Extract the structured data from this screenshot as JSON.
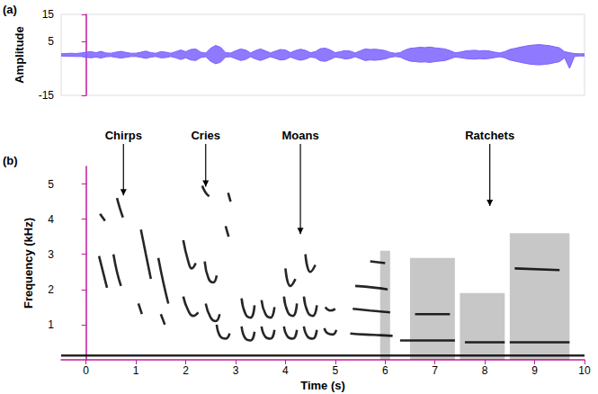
{
  "chart_data": [
    {
      "type": "line",
      "title": "(a)",
      "ylabel": "Amplitude",
      "color": "#7b61ff",
      "tick_labels": "y",
      "grid": false,
      "xlim": [
        -0.5,
        10
      ],
      "ylim": [
        -15,
        15
      ],
      "yticks": [
        -15,
        5,
        15
      ],
      "x": [
        -0.5,
        -0.4,
        -0.3,
        -0.2,
        -0.1,
        0.0,
        0.1,
        0.2,
        0.3,
        0.4,
        0.5,
        0.6,
        0.7,
        0.8,
        0.9,
        1.0,
        1.1,
        1.2,
        1.3,
        1.4,
        1.5,
        1.6,
        1.7,
        1.8,
        1.9,
        2.0,
        2.1,
        2.2,
        2.3,
        2.4,
        2.5,
        2.6,
        2.7,
        2.8,
        2.9,
        3.0,
        3.1,
        3.2,
        3.3,
        3.4,
        3.5,
        3.6,
        3.7,
        3.8,
        3.9,
        4.0,
        4.1,
        4.2,
        4.3,
        4.4,
        4.5,
        4.6,
        4.7,
        4.8,
        4.9,
        5.0,
        5.1,
        5.2,
        5.3,
        5.4,
        5.5,
        5.6,
        5.7,
        5.8,
        5.9,
        6.0,
        6.1,
        6.2,
        6.3,
        6.4,
        6.5,
        6.6,
        6.7,
        6.8,
        6.9,
        7.0,
        7.1,
        7.2,
        7.3,
        7.4,
        7.5,
        7.6,
        7.7,
        7.8,
        7.9,
        8.0,
        8.1,
        8.2,
        8.3,
        8.4,
        8.5,
        8.6,
        8.7,
        8.8,
        8.9,
        9.0,
        9.1,
        9.2,
        9.3,
        9.4,
        9.5,
        9.6,
        9.7,
        9.8,
        9.9,
        10.0
      ],
      "series": [
        {
          "values": [
            0.4,
            0.5,
            0.6,
            0.5,
            0.7,
            1.0,
            1.2,
            0.8,
            1.3,
            0.7,
            0.6,
            1.0,
            1.3,
            0.9,
            0.6,
            0.6,
            1.0,
            1.4,
            0.8,
            0.6,
            1.2,
            1.0,
            0.6,
            1.2,
            1.8,
            1.2,
            2.0,
            2.2,
            1.0,
            0.7,
            2.5,
            3.5,
            2.8,
            0.8,
            0.7,
            1.5,
            2.2,
            1.8,
            0.7,
            1.6,
            2.2,
            1.5,
            0.7,
            1.4,
            2.0,
            1.8,
            0.8,
            1.6,
            2.1,
            1.7,
            0.8,
            1.2,
            2.3,
            2.5,
            1.8,
            0.8,
            1.2,
            1.6,
            1.4,
            0.7,
            1.5,
            2.2,
            2.0,
            2.1,
            1.9,
            1.6,
            0.9,
            0.6,
            0.8,
            1.8,
            2.4,
            2.6,
            2.8,
            2.7,
            2.9,
            2.6,
            2.4,
            2.2,
            1.6,
            0.8,
            1.0,
            1.4,
            1.6,
            1.7,
            1.5,
            1.6,
            1.4,
            1.0,
            0.7,
            1.2,
            2.0,
            2.4,
            2.8,
            3.2,
            3.5,
            3.7,
            3.8,
            3.6,
            3.4,
            3.0,
            2.6,
            1.2,
            0.8,
            0.5,
            0.4,
            0.4
          ]
        },
        {
          "values": [
            -0.4,
            -0.5,
            -0.5,
            -0.6,
            -0.6,
            -0.9,
            -1.1,
            -0.8,
            -1.2,
            -0.7,
            -0.6,
            -0.9,
            -1.2,
            -0.9,
            -0.6,
            -0.6,
            -0.9,
            -1.3,
            -0.8,
            -0.6,
            -1.1,
            -1.0,
            -0.6,
            -1.1,
            -1.7,
            -1.1,
            -1.9,
            -2.1,
            -1.0,
            -0.7,
            -2.4,
            -3.3,
            -2.7,
            -0.8,
            -0.7,
            -1.4,
            -2.1,
            -1.7,
            -0.7,
            -1.5,
            -2.1,
            -1.4,
            -0.7,
            -1.3,
            -1.9,
            -1.7,
            -0.8,
            -1.5,
            -2.0,
            -1.6,
            -0.8,
            -1.1,
            -2.2,
            -2.4,
            -1.7,
            -0.8,
            -1.1,
            -1.5,
            -1.3,
            -0.7,
            -1.4,
            -2.1,
            -1.9,
            -2.0,
            -1.8,
            -1.5,
            -0.9,
            -0.6,
            -0.8,
            -1.7,
            -2.3,
            -2.5,
            -2.7,
            -2.6,
            -2.8,
            -2.5,
            -2.3,
            -2.1,
            -1.5,
            -0.8,
            -1.0,
            -1.3,
            -1.5,
            -1.6,
            -1.4,
            -1.5,
            -1.3,
            -1.0,
            -0.7,
            -1.1,
            -1.9,
            -2.3,
            -2.7,
            -3.1,
            -3.4,
            -3.6,
            -3.7,
            -3.5,
            -3.3,
            -2.9,
            -2.5,
            -1.1,
            -5.0,
            -0.5,
            -0.4,
            -0.4
          ]
        }
      ]
    },
    {
      "type": "spectrogram",
      "title": "(b)",
      "xlabel": "Time (s)",
      "ylabel": "Frequency (kHz)",
      "color": "#000000",
      "grid": false,
      "xlim": [
        -0.5,
        10
      ],
      "xticks": [
        0,
        1,
        2,
        3,
        4,
        5,
        6,
        7,
        8,
        9,
        10
      ],
      "ylim": [
        0,
        5.5
      ],
      "yticks": [
        1,
        2,
        3,
        4,
        5
      ],
      "traces": [
        [
          [
            -0.5,
            0.12
          ],
          [
            10,
            0.12
          ]
        ],
        [
          [
            0.28,
            4.15
          ],
          [
            0.38,
            3.95
          ]
        ],
        [
          [
            0.26,
            2.95
          ],
          [
            0.34,
            2.5
          ],
          [
            0.42,
            2.05
          ]
        ],
        [
          [
            0.62,
            4.6
          ],
          [
            0.68,
            4.3
          ],
          [
            0.74,
            4.05
          ]
        ],
        [
          [
            0.55,
            3.0
          ],
          [
            0.62,
            2.5
          ],
          [
            0.7,
            2.1
          ]
        ],
        [
          [
            1.1,
            3.7
          ],
          [
            1.2,
            3.0
          ],
          [
            1.3,
            2.3
          ]
        ],
        [
          [
            1.05,
            1.6
          ],
          [
            1.12,
            1.3
          ]
        ],
        [
          [
            1.45,
            2.9
          ],
          [
            1.55,
            2.2
          ],
          [
            1.65,
            1.6
          ]
        ],
        [
          [
            1.5,
            1.3
          ],
          [
            1.58,
            1.0
          ]
        ],
        [
          [
            1.95,
            3.4
          ],
          [
            2.05,
            2.8
          ],
          [
            2.12,
            2.6
          ],
          [
            2.2,
            2.75
          ]
        ],
        [
          [
            1.95,
            1.8
          ],
          [
            2.05,
            1.4
          ],
          [
            2.15,
            1.25
          ],
          [
            2.25,
            1.35
          ]
        ],
        [
          [
            2.33,
            4.95
          ],
          [
            2.4,
            4.75
          ],
          [
            2.47,
            4.65
          ]
        ],
        [
          [
            2.38,
            2.8
          ],
          [
            2.46,
            2.3
          ],
          [
            2.55,
            2.2
          ],
          [
            2.62,
            2.4
          ]
        ],
        [
          [
            2.4,
            1.6
          ],
          [
            2.5,
            1.2
          ],
          [
            2.6,
            1.1
          ],
          [
            2.68,
            1.3
          ]
        ],
        [
          [
            2.62,
            1.0
          ],
          [
            2.7,
            0.65
          ],
          [
            2.8,
            0.6
          ],
          [
            2.88,
            0.75
          ]
        ],
        [
          [
            2.85,
            4.75
          ],
          [
            2.9,
            4.5
          ]
        ],
        [
          [
            2.8,
            3.8
          ],
          [
            2.86,
            3.5
          ]
        ],
        [
          [
            3.12,
            0.95
          ],
          [
            3.2,
            0.6
          ],
          [
            3.3,
            0.55
          ],
          [
            3.38,
            0.8
          ]
        ],
        [
          [
            3.12,
            1.75
          ],
          [
            3.2,
            1.3
          ],
          [
            3.3,
            1.2
          ],
          [
            3.38,
            1.55
          ]
        ],
        [
          [
            3.52,
            0.95
          ],
          [
            3.6,
            0.65
          ],
          [
            3.7,
            0.6
          ],
          [
            3.78,
            0.85
          ]
        ],
        [
          [
            3.52,
            1.7
          ],
          [
            3.6,
            1.3
          ],
          [
            3.7,
            1.2
          ],
          [
            3.78,
            1.5
          ]
        ],
        [
          [
            3.97,
            0.95
          ],
          [
            4.05,
            0.65
          ],
          [
            4.15,
            0.6
          ],
          [
            4.23,
            0.85
          ]
        ],
        [
          [
            3.97,
            1.8
          ],
          [
            4.05,
            1.35
          ],
          [
            4.15,
            1.25
          ],
          [
            4.23,
            1.6
          ]
        ],
        [
          [
            4.0,
            2.6
          ],
          [
            4.1,
            2.1
          ],
          [
            4.2,
            2.3
          ]
        ],
        [
          [
            4.37,
            0.95
          ],
          [
            4.45,
            0.65
          ],
          [
            4.55,
            0.6
          ],
          [
            4.63,
            0.85
          ]
        ],
        [
          [
            4.37,
            1.8
          ],
          [
            4.45,
            1.35
          ],
          [
            4.55,
            1.25
          ],
          [
            4.63,
            1.55
          ]
        ],
        [
          [
            4.4,
            3.0
          ],
          [
            4.5,
            2.5
          ],
          [
            4.6,
            2.7
          ]
        ],
        [
          [
            4.78,
            0.9
          ],
          [
            4.85,
            0.75
          ],
          [
            4.95,
            0.72
          ],
          [
            5.02,
            0.85
          ]
        ],
        [
          [
            4.8,
            1.5
          ],
          [
            4.9,
            1.4
          ],
          [
            5.0,
            1.45
          ]
        ],
        [
          [
            5.3,
            0.75
          ],
          [
            5.6,
            0.72
          ],
          [
            5.9,
            0.7
          ],
          [
            6.15,
            0.68
          ]
        ],
        [
          [
            5.35,
            1.45
          ],
          [
            5.7,
            1.4
          ],
          [
            6.1,
            1.35
          ]
        ],
        [
          [
            5.4,
            2.1
          ],
          [
            5.8,
            2.05
          ],
          [
            6.05,
            2.0
          ]
        ],
        [
          [
            5.7,
            2.8
          ],
          [
            6.0,
            2.75
          ]
        ],
        [
          [
            6.3,
            0.55
          ],
          [
            7.4,
            0.55
          ]
        ],
        [
          [
            7.6,
            0.5
          ],
          [
            8.4,
            0.5
          ]
        ],
        [
          [
            8.5,
            0.5
          ],
          [
            9.7,
            0.5
          ]
        ],
        [
          [
            8.6,
            2.6
          ],
          [
            9.5,
            2.55
          ]
        ],
        [
          [
            6.6,
            1.3
          ],
          [
            7.3,
            1.3
          ]
        ]
      ],
      "bands": [
        {
          "x": [
            6.5,
            7.4
          ],
          "y": [
            0,
            2.9
          ]
        },
        {
          "x": [
            7.5,
            8.4
          ],
          "y": [
            0,
            1.9
          ]
        },
        {
          "x": [
            8.5,
            9.7
          ],
          "y": [
            0,
            3.6
          ]
        },
        {
          "x": [
            5.9,
            6.1
          ],
          "y": [
            0,
            3.1
          ]
        }
      ],
      "annotations": [
        {
          "text": "Chirps",
          "x": 0.75,
          "y": 4.6
        },
        {
          "text": "Cries",
          "x": 2.4,
          "y": 4.85
        },
        {
          "text": "Moans",
          "x": 4.3,
          "y": 3.5
        },
        {
          "text": "Ratchets",
          "x": 8.1,
          "y": 4.3
        }
      ]
    }
  ]
}
